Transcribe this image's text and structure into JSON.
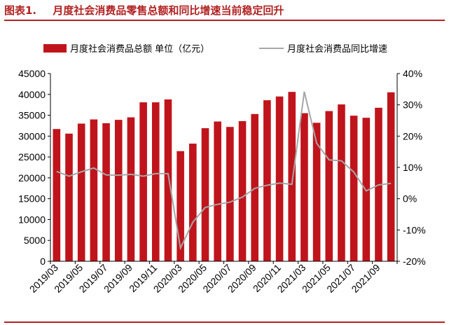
{
  "figure": {
    "number": "图表1.",
    "title": "月度社会消费品零售总额和同比增速当前稳定回升"
  },
  "colors": {
    "bar": "#c0141c",
    "line": "#a6a6a6",
    "accent": "#b22222",
    "axis": "#000000"
  },
  "chart_data": {
    "type": "bar",
    "title": "月度社会消费品零售总额和同比增速当前稳定回升",
    "categories": [
      "2019/03",
      "2019/04",
      "2019/05",
      "2019/06",
      "2019/07",
      "2019/08",
      "2019/09",
      "2019/10",
      "2019/11",
      "2019/12",
      "2020/03",
      "2020/04",
      "2020/05",
      "2020/06",
      "2020/07",
      "2020/08",
      "2020/09",
      "2020/10",
      "2020/11",
      "2020/12",
      "2021/03",
      "2021/04",
      "2021/05",
      "2021/06",
      "2021/07",
      "2021/08",
      "2021/09",
      "2021/10"
    ],
    "x_tick_labels": [
      "2019/03",
      "2019/05",
      "2019/07",
      "2019/09",
      "2019/11",
      "2020/03",
      "2020/05",
      "2020/07",
      "2020/09",
      "2020/11",
      "2021/03",
      "2021/05",
      "2021/07",
      "2021/09"
    ],
    "x_tick_every": 2,
    "series": [
      {
        "name": "月度社会消费品总额 单位（亿元）",
        "type": "bar",
        "axis": "left",
        "values": [
          31700,
          30600,
          33000,
          34000,
          33100,
          33900,
          34500,
          38100,
          38100,
          38800,
          26400,
          28200,
          31900,
          33500,
          32200,
          33600,
          35300,
          38600,
          39500,
          40600,
          35500,
          33200,
          36000,
          37600,
          34900,
          34400,
          36800,
          40500
        ]
      },
      {
        "name": "月度社会消费品同比增速",
        "type": "line",
        "axis": "right",
        "values": [
          8.7,
          7.2,
          8.6,
          9.8,
          7.6,
          7.5,
          7.8,
          7.2,
          8.0,
          8.0,
          -15.8,
          -7.5,
          -2.8,
          -1.8,
          -1.1,
          0.5,
          3.3,
          4.3,
          5.0,
          4.6,
          34.2,
          17.7,
          12.4,
          12.1,
          8.5,
          2.5,
          4.4,
          4.9
        ]
      }
    ],
    "y_left": {
      "ticks": [
        0,
        5000,
        10000,
        15000,
        20000,
        25000,
        30000,
        35000,
        40000,
        45000
      ],
      "range": [
        0,
        45000
      ]
    },
    "y_right": {
      "ticks": [
        "-20%",
        "-10%",
        "0%",
        "10%",
        "20%",
        "30%",
        "40%"
      ],
      "range": [
        -20,
        40
      ]
    },
    "legend_position": "top",
    "grid": false
  }
}
